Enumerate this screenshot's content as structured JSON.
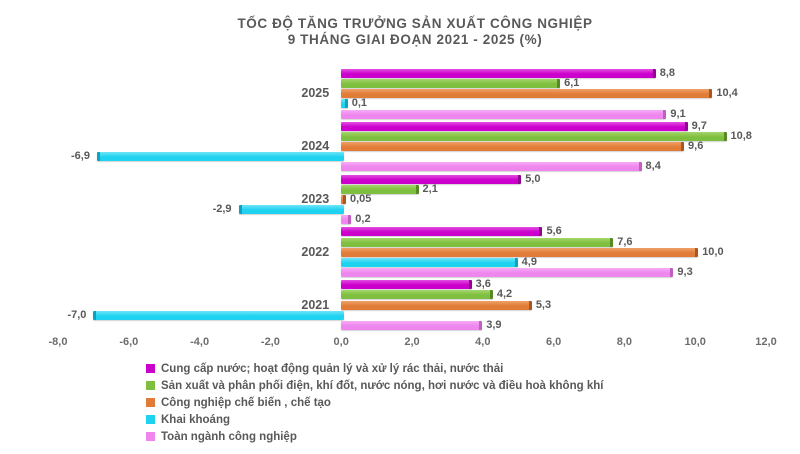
{
  "chart_data": {
    "type": "bar",
    "orientation": "horizontal-grouped",
    "title": {
      "line1": "TỐC ĐỘ TĂNG TRƯỞNG SẢN XUẤT CÔNG NGHIỆP",
      "line2": "9 THÁNG GIAI ĐOẠN 2021 - 2025 (%)"
    },
    "categories": [
      "2025",
      "2024",
      "2023",
      "2022",
      "2021"
    ],
    "axis": {
      "min": -8,
      "max": 12,
      "step": 2,
      "tick_labels": [
        "-8,0",
        "-6,0",
        "-4,0",
        "-2,0",
        "0,0",
        "2,0",
        "4,0",
        "6,0",
        "8,0",
        "10,0",
        "12,0"
      ],
      "grid": false
    },
    "legend_position": "bottom-left",
    "text_color": "#595959",
    "series": [
      {
        "name": "Cung cấp nước; hoạt động quản lý và xử lý rác thải, nước thải",
        "color": "#CC00CC",
        "color_light": "#E24FE2",
        "color_cap": "#8E058E",
        "values": [
          8.8,
          9.7,
          5.0,
          5.6,
          3.6
        ],
        "labels": [
          "8,8",
          "9,7",
          "5,0",
          "5,6",
          "3,6"
        ]
      },
      {
        "name": "Sản xuất và phân phối điện, khí đốt, nước nóng, hơi nước và điều hoà không khí",
        "color": "#7FBF3F",
        "color_light": "#A4D66B",
        "color_cap": "#578A24",
        "values": [
          6.1,
          10.8,
          2.1,
          7.6,
          4.2
        ],
        "labels": [
          "6,1",
          "10,8",
          "2,1",
          "7,6",
          "4,2"
        ]
      },
      {
        "name": "Công nghiệp chế biến , chế tạo",
        "color": "#E07C38",
        "color_light": "#EFA269",
        "color_cap": "#A95620",
        "values": [
          10.4,
          9.6,
          0.05,
          10.0,
          5.3
        ],
        "labels": [
          "10,4",
          "9,6",
          "0,05",
          "10,0",
          "5,3"
        ]
      },
      {
        "name": "Khai khoáng",
        "color": "#1FD2F0",
        "color_light": "#6FE5F9",
        "color_cap": "#0CA2C4",
        "values": [
          0.1,
          -6.9,
          -2.9,
          4.9,
          -7.0
        ],
        "labels": [
          "0,1",
          "-6,9",
          "-2,9",
          "4,9",
          "-7,0"
        ]
      },
      {
        "name": "Toàn ngành công nghiệp",
        "color": "#EE86EE",
        "color_light": "#F6ABF6",
        "color_cap": "#C05FC0",
        "values": [
          9.1,
          8.4,
          0.2,
          9.3,
          3.9
        ],
        "labels": [
          "9,1",
          "8,4",
          "0,2",
          "9,3",
          "3,9"
        ]
      }
    ]
  }
}
